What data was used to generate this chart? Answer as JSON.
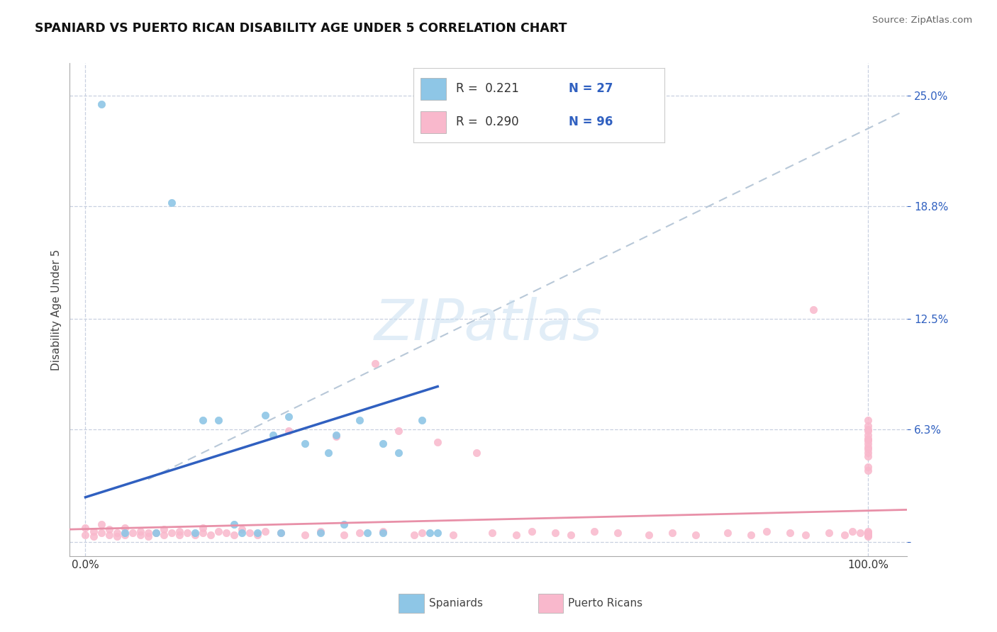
{
  "title": "SPANIARD VS PUERTO RICAN DISABILITY AGE UNDER 5 CORRELATION CHART",
  "source": "Source: ZipAtlas.com",
  "ylabel": "Disability Age Under 5",
  "y_tick_labels": [
    "",
    "6.3%",
    "12.5%",
    "18.8%",
    "25.0%"
  ],
  "y_tick_positions": [
    0.0,
    0.063,
    0.125,
    0.188,
    0.25
  ],
  "xlim": [
    -0.02,
    1.05
  ],
  "ylim": [
    -0.008,
    0.268
  ],
  "watermark": "ZIPatlas",
  "legend_r1": "R =  0.221",
  "legend_n1": "N = 27",
  "legend_r2": "R =  0.290",
  "legend_n2": "N = 96",
  "spaniard_color": "#8ec6e6",
  "puerto_rican_color": "#f9b8cc",
  "line1_color": "#3060c0",
  "line2_color": "#e890a8",
  "trendline_color": "#b8c8d8",
  "background_color": "#ffffff",
  "grid_color": "#c8d0e0",
  "text_color_blue": "#3060c0",
  "sp_x": [
    0.02,
    0.05,
    0.09,
    0.11,
    0.14,
    0.15,
    0.17,
    0.19,
    0.2,
    0.22,
    0.23,
    0.24,
    0.25,
    0.26,
    0.28,
    0.3,
    0.31,
    0.32,
    0.33,
    0.35,
    0.36,
    0.38,
    0.38,
    0.4,
    0.43,
    0.44,
    0.45
  ],
  "sp_y": [
    0.245,
    0.005,
    0.005,
    0.19,
    0.005,
    0.068,
    0.068,
    0.01,
    0.005,
    0.005,
    0.071,
    0.06,
    0.005,
    0.07,
    0.055,
    0.005,
    0.05,
    0.06,
    0.01,
    0.068,
    0.005,
    0.055,
    0.005,
    0.05,
    0.068,
    0.005,
    0.005
  ],
  "pr_x": [
    0.0,
    0.0,
    0.01,
    0.01,
    0.02,
    0.02,
    0.03,
    0.03,
    0.04,
    0.04,
    0.05,
    0.05,
    0.06,
    0.07,
    0.07,
    0.08,
    0.08,
    0.09,
    0.1,
    0.1,
    0.11,
    0.12,
    0.12,
    0.13,
    0.14,
    0.15,
    0.15,
    0.16,
    0.17,
    0.18,
    0.19,
    0.2,
    0.21,
    0.22,
    0.23,
    0.25,
    0.26,
    0.28,
    0.3,
    0.32,
    0.33,
    0.35,
    0.37,
    0.38,
    0.4,
    0.42,
    0.43,
    0.45,
    0.47,
    0.5,
    0.52,
    0.55,
    0.57,
    0.6,
    0.62,
    0.65,
    0.68,
    0.72,
    0.75,
    0.78,
    0.82,
    0.85,
    0.87,
    0.9,
    0.92,
    0.93,
    0.95,
    0.97,
    0.98,
    0.99,
    1.0,
    1.0,
    1.0,
    1.0,
    1.0,
    1.0,
    1.0,
    1.0,
    1.0,
    1.0,
    1.0,
    1.0,
    1.0,
    1.0,
    1.0,
    1.0,
    1.0,
    1.0,
    1.0,
    1.0,
    1.0,
    1.0,
    1.0,
    1.0,
    1.0,
    1.0
  ],
  "pr_y": [
    0.004,
    0.008,
    0.003,
    0.006,
    0.005,
    0.01,
    0.004,
    0.007,
    0.005,
    0.003,
    0.004,
    0.008,
    0.005,
    0.004,
    0.006,
    0.005,
    0.003,
    0.005,
    0.004,
    0.007,
    0.005,
    0.004,
    0.006,
    0.005,
    0.004,
    0.005,
    0.008,
    0.004,
    0.006,
    0.005,
    0.004,
    0.007,
    0.005,
    0.004,
    0.006,
    0.005,
    0.062,
    0.004,
    0.006,
    0.059,
    0.004,
    0.005,
    0.1,
    0.006,
    0.062,
    0.004,
    0.005,
    0.056,
    0.004,
    0.05,
    0.005,
    0.004,
    0.006,
    0.005,
    0.004,
    0.006,
    0.005,
    0.004,
    0.005,
    0.004,
    0.005,
    0.004,
    0.006,
    0.005,
    0.004,
    0.13,
    0.005,
    0.004,
    0.006,
    0.005,
    0.004,
    0.068,
    0.005,
    0.004,
    0.065,
    0.05,
    0.006,
    0.005,
    0.057,
    0.004,
    0.06,
    0.042,
    0.053,
    0.005,
    0.063,
    0.004,
    0.048,
    0.055,
    0.005,
    0.057,
    0.04,
    0.058,
    0.005,
    0.052,
    0.062,
    0.003
  ]
}
